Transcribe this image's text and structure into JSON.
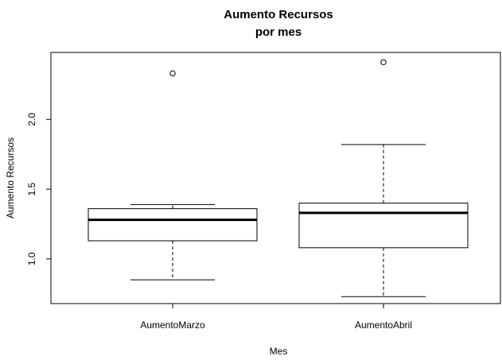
{
  "chart_data": {
    "type": "boxplot",
    "title_lines": [
      "Aumento Recursos",
      "por mes"
    ],
    "xlabel": "Mes",
    "ylabel": "Aumento Recursos",
    "categories": [
      "AumentoMarzo",
      "AumentoAbril"
    ],
    "ylim": [
      0.68,
      2.48
    ],
    "yticks": [
      1.0,
      1.5,
      2.0
    ],
    "ytick_labels": [
      "1.0",
      "1.5",
      "2.0"
    ],
    "boxes": [
      {
        "category": "AumentoMarzo",
        "whisker_low": 0.85,
        "q1": 1.13,
        "median": 1.28,
        "q3": 1.36,
        "whisker_high": 1.39,
        "outliers": [
          2.33
        ]
      },
      {
        "category": "AumentoAbril",
        "whisker_low": 0.73,
        "q1": 1.08,
        "median": 1.33,
        "q3": 1.4,
        "whisker_high": 1.82,
        "outliers": [
          2.41
        ]
      }
    ],
    "grid": false,
    "legend": "none"
  }
}
